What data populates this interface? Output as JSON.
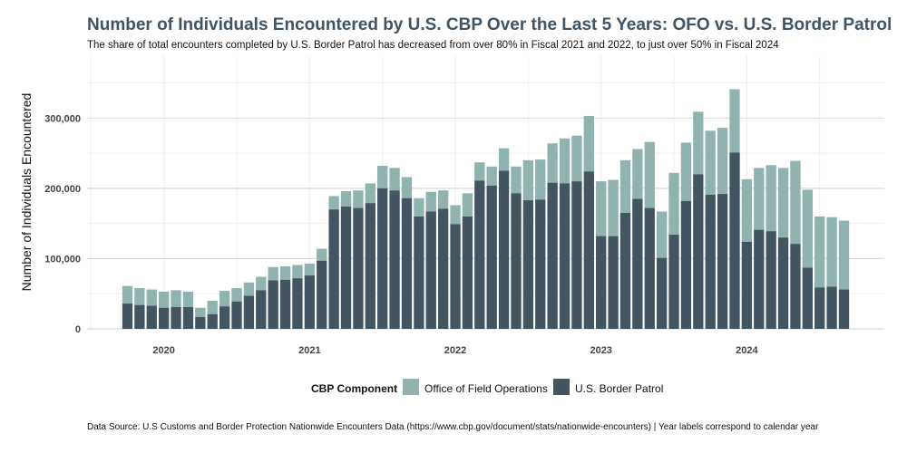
{
  "chart_data": {
    "type": "bar",
    "stacked": true,
    "title": "Number of Individuals Encountered by U.S. CBP Over the Last 5 Years: OFO vs. U.S. Border Patrol",
    "subtitle": "The share of total encounters completed by U.S. Border Patrol has decreased from over 80% in Fiscal 2021 and 2022, to just over 50% in Fiscal 2024",
    "ylabel": "Number of Individuals Encountered",
    "xlabel": "",
    "ylim": [
      0,
      370000
    ],
    "yticks": [
      0,
      100000,
      200000,
      300000
    ],
    "ytick_labels": [
      "0",
      "100,000",
      "200,000",
      "300,000"
    ],
    "xtick_labels": [
      "2020",
      "2021",
      "2022",
      "2023",
      "2024"
    ],
    "xtick_month_index": [
      3,
      15,
      27,
      39,
      51
    ],
    "legend_title": "CBP Component",
    "caption": "Data Source: U.S Customs and Border Protection Nationwide Encounters Data (https://www.cbp.gov/document/stats/nationwide-encounters) | Year labels correspond to calendar year",
    "colors": {
      "ofo": "#8fb3ae",
      "usbp": "#435560",
      "grid": "#d9d9d9",
      "minor_grid": "#efefef"
    },
    "months_start": "2019-10",
    "series": [
      {
        "name": "Office of Field Operations",
        "key": "ofo",
        "values": [
          25000,
          24000,
          23000,
          23000,
          24000,
          22000,
          13000,
          19000,
          22000,
          19000,
          19000,
          19000,
          19000,
          19000,
          19000,
          17000,
          17000,
          19000,
          22000,
          25000,
          28000,
          32000,
          32000,
          30000,
          26000,
          28000,
          26000,
          27000,
          33000,
          26000,
          27000,
          32000,
          38000,
          57000,
          57000,
          56000,
          64000,
          65000,
          79000,
          78000,
          80000,
          75000,
          71000,
          94000,
          66000,
          88000,
          83000,
          89000,
          91000,
          94000,
          90000,
          89000,
          88000,
          94000,
          99000,
          118000,
          111000,
          101000,
          99000,
          98000
        ]
      },
      {
        "name": "U.S. Border Patrol",
        "key": "usbp",
        "values": [
          36000,
          34000,
          33000,
          30000,
          31000,
          31000,
          17000,
          21000,
          32000,
          39000,
          47000,
          55000,
          69000,
          70000,
          72000,
          76000,
          97000,
          170000,
          174000,
          172000,
          179000,
          200000,
          197000,
          186000,
          160000,
          167000,
          171000,
          149000,
          160000,
          211000,
          204000,
          225000,
          193000,
          183000,
          184000,
          208000,
          207000,
          210000,
          224000,
          132000,
          132000,
          165000,
          185000,
          172000,
          101000,
          134000,
          182000,
          220000,
          191000,
          192000,
          251000,
          124000,
          141000,
          139000,
          130000,
          121000,
          87000,
          59000,
          60000,
          56000
        ]
      }
    ]
  }
}
